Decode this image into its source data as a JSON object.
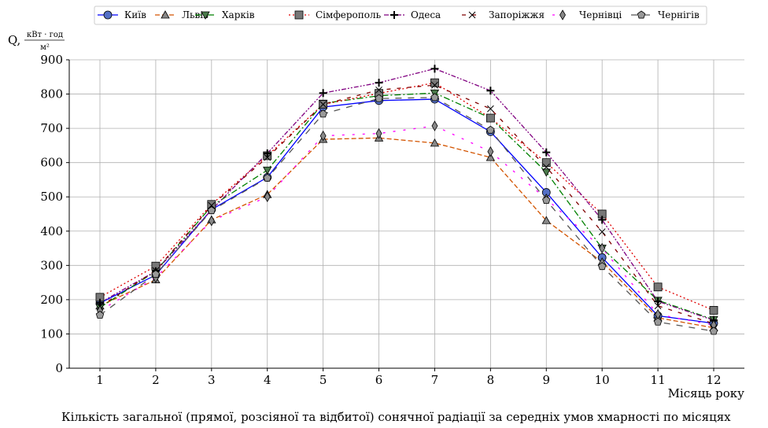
{
  "chart_data": {
    "type": "line",
    "caption": "Кількість загальної (прямої, розсіяної та відбитої) сонячної радіації за середніх умов хмарності по місяцях",
    "ylabel_prefix": "Q,",
    "ylabel_unit_numerator": "кВт · год",
    "ylabel_unit_denominator": "м²",
    "xlabel": "Місяць року",
    "x": [
      1,
      2,
      3,
      4,
      5,
      6,
      7,
      8,
      9,
      10,
      11,
      12
    ],
    "xticks": [
      "1",
      "2",
      "3",
      "4",
      "5",
      "6",
      "7",
      "8",
      "9",
      "10",
      "11",
      "12"
    ],
    "ylim": [
      0,
      900
    ],
    "yticks": [
      "0",
      "100",
      "200",
      "300",
      "400",
      "500",
      "600",
      "700",
      "800",
      "900"
    ],
    "grid": true,
    "legend_position": "top-center",
    "series": [
      {
        "name": "Київ",
        "color": "#0000ff",
        "dash": "solid",
        "marker": "circle",
        "values": [
          190,
          272,
          463,
          557,
          762,
          781,
          785,
          690,
          513,
          323,
          153,
          131
        ]
      },
      {
        "name": "Львів",
        "color": "#d35400",
        "dash": "dashed",
        "marker": "triangle-up",
        "values": [
          182,
          258,
          433,
          507,
          668,
          672,
          657,
          615,
          431,
          310,
          147,
          118
        ]
      },
      {
        "name": "Харків",
        "color": "#008000",
        "dash": "dashdot",
        "marker": "triangle-down",
        "values": [
          177,
          283,
          473,
          578,
          773,
          795,
          803,
          730,
          572,
          350,
          198,
          142
        ]
      },
      {
        "name": "Сімферополь",
        "color": "#e00000",
        "dash": "dotted",
        "marker": "square",
        "values": [
          207,
          298,
          478,
          620,
          770,
          802,
          833,
          730,
          600,
          450,
          237,
          169
        ]
      },
      {
        "name": "Одеса",
        "color": "#800080",
        "dash": "dashdotdot",
        "marker": "plus",
        "values": [
          191,
          283,
          462,
          627,
          803,
          833,
          874,
          810,
          630,
          433,
          195,
          140
        ]
      },
      {
        "name": "Запоріжжя",
        "color": "#800000",
        "dash": "loosedash",
        "marker": "x",
        "values": [
          180,
          285,
          475,
          615,
          770,
          812,
          826,
          757,
          587,
          398,
          182,
          130
        ]
      },
      {
        "name": "Чернівці",
        "color": "#ff00ff",
        "dash": "dashdot-loose",
        "marker": "diamond",
        "values": [
          168,
          264,
          430,
          500,
          678,
          685,
          707,
          632,
          494,
          350,
          157,
          126
        ]
      },
      {
        "name": "Чернігів",
        "color": "#555555",
        "dash": "dashed-long",
        "marker": "pentagon",
        "values": [
          155,
          274,
          460,
          555,
          742,
          787,
          790,
          695,
          490,
          297,
          135,
          108
        ]
      }
    ]
  }
}
